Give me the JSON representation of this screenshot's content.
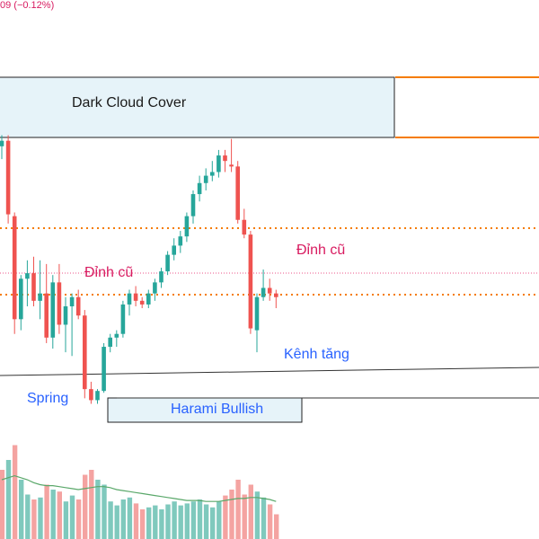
{
  "chart_data": {
    "type": "candlestick",
    "header_change_text": "09 (−0.12%)",
    "y_units_note": "",
    "colors": {
      "up": "#26a69a",
      "down": "#ef5350",
      "vol_up": "#7fc9bd",
      "vol_down": "#f4a3a1",
      "ma": "#5aa86a",
      "orange": "#f57c00",
      "pink_line": "#e91e63",
      "zone_fill": "#e6f3f9",
      "text_dark": "#1a1a1a",
      "text_pink": "#d81b60",
      "text_blue": "#2962ff"
    },
    "candles": [
      {
        "o": 142,
        "h": 148,
        "l": 135,
        "c": 145
      },
      {
        "o": 145,
        "h": 148,
        "l": 100,
        "c": 105
      },
      {
        "o": 104,
        "h": 106,
        "l": 40,
        "c": 48
      },
      {
        "o": 48,
        "h": 72,
        "l": 42,
        "c": 70
      },
      {
        "o": 70,
        "h": 80,
        "l": 55,
        "c": 73
      },
      {
        "o": 73,
        "h": 82,
        "l": 55,
        "c": 58
      },
      {
        "o": 58,
        "h": 80,
        "l": 48,
        "c": 62
      },
      {
        "o": 62,
        "h": 78,
        "l": 35,
        "c": 38
      },
      {
        "o": 38,
        "h": 72,
        "l": 32,
        "c": 68
      },
      {
        "o": 68,
        "h": 78,
        "l": 40,
        "c": 45
      },
      {
        "o": 45,
        "h": 60,
        "l": 30,
        "c": 55
      },
      {
        "o": 55,
        "h": 62,
        "l": 28,
        "c": 60
      },
      {
        "o": 60,
        "h": 64,
        "l": 48,
        "c": 50
      },
      {
        "o": 50,
        "h": 53,
        "l": 5,
        "c": 10
      },
      {
        "o": 10,
        "h": 14,
        "l": 2,
        "c": 4
      },
      {
        "o": 4,
        "h": 10,
        "l": 2,
        "c": 9
      },
      {
        "o": 9,
        "h": 35,
        "l": 8,
        "c": 33
      },
      {
        "o": 33,
        "h": 40,
        "l": 30,
        "c": 38
      },
      {
        "o": 38,
        "h": 42,
        "l": 33,
        "c": 40
      },
      {
        "o": 40,
        "h": 58,
        "l": 38,
        "c": 56
      },
      {
        "o": 56,
        "h": 64,
        "l": 50,
        "c": 62
      },
      {
        "o": 62,
        "h": 66,
        "l": 55,
        "c": 58
      },
      {
        "o": 58,
        "h": 60,
        "l": 54,
        "c": 56
      },
      {
        "o": 56,
        "h": 64,
        "l": 54,
        "c": 62
      },
      {
        "o": 62,
        "h": 70,
        "l": 58,
        "c": 68
      },
      {
        "o": 68,
        "h": 76,
        "l": 65,
        "c": 74
      },
      {
        "o": 74,
        "h": 85,
        "l": 72,
        "c": 83
      },
      {
        "o": 83,
        "h": 92,
        "l": 80,
        "c": 88
      },
      {
        "o": 88,
        "h": 96,
        "l": 84,
        "c": 93
      },
      {
        "o": 93,
        "h": 106,
        "l": 90,
        "c": 104
      },
      {
        "o": 104,
        "h": 118,
        "l": 100,
        "c": 116
      },
      {
        "o": 116,
        "h": 126,
        "l": 112,
        "c": 122
      },
      {
        "o": 122,
        "h": 130,
        "l": 118,
        "c": 126
      },
      {
        "o": 126,
        "h": 134,
        "l": 123,
        "c": 128
      },
      {
        "o": 128,
        "h": 140,
        "l": 125,
        "c": 137
      },
      {
        "o": 137,
        "h": 140,
        "l": 128,
        "c": 134
      },
      {
        "o": 132,
        "h": 146,
        "l": 128,
        "c": 131
      },
      {
        "o": 131,
        "h": 134,
        "l": 100,
        "c": 102
      },
      {
        "o": 102,
        "h": 108,
        "l": 92,
        "c": 94
      },
      {
        "o": 94,
        "h": 96,
        "l": 40,
        "c": 43
      },
      {
        "o": 42,
        "h": 62,
        "l": 30,
        "c": 60
      },
      {
        "o": 60,
        "h": 75,
        "l": 58,
        "c": 65
      },
      {
        "o": 65,
        "h": 70,
        "l": 58,
        "c": 62
      },
      {
        "o": 62,
        "h": 64,
        "l": 54,
        "c": 60
      }
    ],
    "volumes": [
      {
        "v": 70,
        "up": false
      },
      {
        "v": 80,
        "up": true
      },
      {
        "v": 95,
        "up": false
      },
      {
        "v": 60,
        "up": true
      },
      {
        "v": 45,
        "up": true
      },
      {
        "v": 40,
        "up": false
      },
      {
        "v": 42,
        "up": true
      },
      {
        "v": 55,
        "up": false
      },
      {
        "v": 50,
        "up": true
      },
      {
        "v": 48,
        "up": false
      },
      {
        "v": 38,
        "up": true
      },
      {
        "v": 44,
        "up": true
      },
      {
        "v": 40,
        "up": false
      },
      {
        "v": 65,
        "up": false
      },
      {
        "v": 70,
        "up": false
      },
      {
        "v": 60,
        "up": true
      },
      {
        "v": 55,
        "up": true
      },
      {
        "v": 38,
        "up": true
      },
      {
        "v": 34,
        "up": true
      },
      {
        "v": 40,
        "up": true
      },
      {
        "v": 42,
        "up": true
      },
      {
        "v": 36,
        "up": false
      },
      {
        "v": 30,
        "up": false
      },
      {
        "v": 32,
        "up": true
      },
      {
        "v": 34,
        "up": true
      },
      {
        "v": 30,
        "up": true
      },
      {
        "v": 35,
        "up": true
      },
      {
        "v": 38,
        "up": true
      },
      {
        "v": 34,
        "up": true
      },
      {
        "v": 36,
        "up": true
      },
      {
        "v": 38,
        "up": true
      },
      {
        "v": 40,
        "up": true
      },
      {
        "v": 35,
        "up": true
      },
      {
        "v": 32,
        "up": true
      },
      {
        "v": 38,
        "up": true
      },
      {
        "v": 44,
        "up": false
      },
      {
        "v": 50,
        "up": false
      },
      {
        "v": 60,
        "up": false
      },
      {
        "v": 45,
        "up": false
      },
      {
        "v": 55,
        "up": false
      },
      {
        "v": 48,
        "up": true
      },
      {
        "v": 42,
        "up": true
      },
      {
        "v": 35,
        "up": false
      },
      {
        "v": 25,
        "up": false
      }
    ],
    "volume_ma": [
      60,
      62,
      64,
      62,
      60,
      57,
      55,
      54,
      54,
      53,
      52,
      51,
      50,
      51,
      52,
      53,
      53,
      52,
      50,
      49,
      48,
      47,
      46,
      45,
      44,
      43,
      42,
      41,
      40,
      39,
      39,
      39,
      38,
      38,
      38,
      39,
      40,
      41,
      41,
      42,
      42,
      41,
      40,
      38
    ],
    "levels": {
      "dark_cloud_top": 166,
      "dark_cloud_bottom": 146,
      "orange_dotted_upper": 84,
      "orange_dotted_lower": 50,
      "pink_dotted": 60,
      "harami_top": 9,
      "harami_bottom": 0,
      "channel_left": 15,
      "channel_right": 22
    },
    "y_range": [
      -8,
      180
    ]
  },
  "annotations": {
    "dark_cloud": "Dark Cloud Cover",
    "dinh_cu_left": "Đỉnh cũ",
    "dinh_cu_right": "Đỉnh cũ",
    "kenh_tang": "Kênh tăng",
    "spring": "Spring",
    "harami": "Harami Bullish"
  }
}
